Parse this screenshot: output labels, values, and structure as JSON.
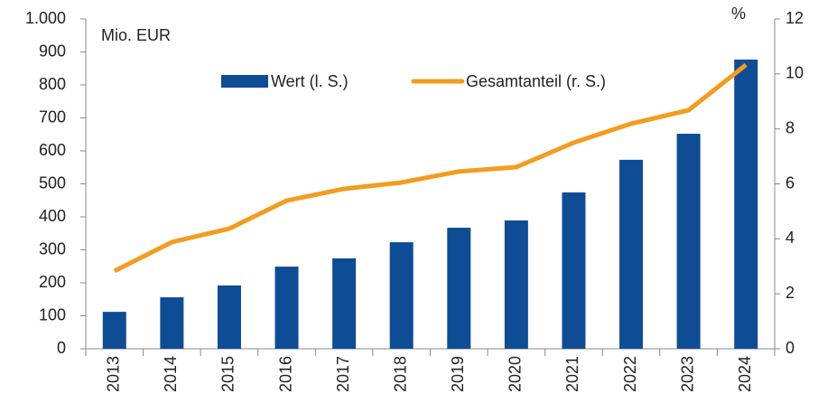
{
  "chart_data": {
    "type": "bar-line",
    "left_axis_label": "Mio. EUR",
    "right_axis_label": "%",
    "categories": [
      "2013",
      "2014",
      "2015",
      "2016",
      "2017",
      "2018",
      "2019",
      "2020",
      "2021",
      "2022",
      "2023",
      "2024"
    ],
    "series": [
      {
        "name": "Wert (l. S.)",
        "type": "bar",
        "color": "#0f4c96",
        "values": [
          112,
          156,
          192,
          249,
          274,
          323,
          367,
          389,
          474,
          573,
          652,
          877
        ]
      },
      {
        "name": "Gesamtanteil (r. S.)",
        "type": "line",
        "axis": "y2",
        "color": "#f39c1e",
        "values": [
          2.83,
          3.88,
          4.37,
          5.39,
          5.82,
          6.05,
          6.45,
          6.61,
          7.5,
          8.19,
          8.68,
          10.33
        ]
      }
    ],
    "ylim": [
      0,
      1000
    ],
    "yticks": [
      0,
      100,
      200,
      300,
      400,
      500,
      600,
      700,
      800,
      900,
      {
        "value": 1000,
        "label": "1.000"
      }
    ],
    "y2lim": [
      0,
      12
    ],
    "y2ticks": [
      0,
      2,
      4,
      6,
      8,
      10,
      12
    ],
    "legend": "top"
  }
}
